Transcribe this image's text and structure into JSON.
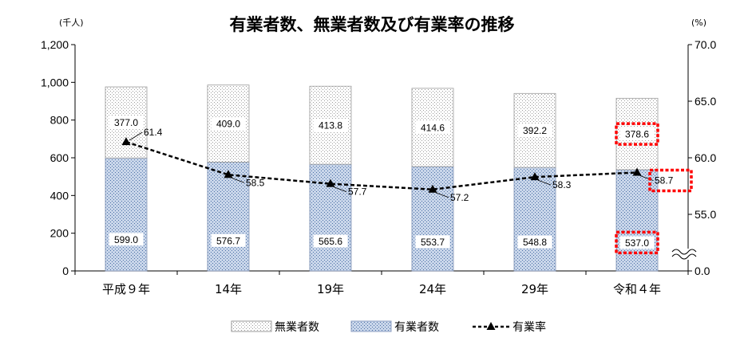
{
  "chart_data": {
    "type": "bar",
    "title": "有業者数、無業者数及び有業率の推移",
    "left_unit": "(千人)",
    "right_unit": "(%)",
    "categories": [
      "平成９年",
      "14年",
      "19年",
      "24年",
      "29年",
      "令和４年"
    ],
    "left_axis": {
      "min": 0,
      "max": 1200,
      "ticks": [
        "0",
        "200",
        "400",
        "600",
        "800",
        "1,000",
        "1,200"
      ]
    },
    "right_axis": {
      "ticks": [
        "0.0",
        "55.0",
        "60.0",
        "65.0",
        "70.0"
      ],
      "range": [
        50,
        70
      ],
      "break": true
    },
    "series": [
      {
        "name": "有業者数",
        "kind": "bar",
        "values": [
          599.0,
          576.7,
          565.6,
          553.7,
          548.8,
          537.0
        ],
        "labels": [
          "599.0",
          "576.7",
          "565.6",
          "553.7",
          "548.8",
          "537.0"
        ]
      },
      {
        "name": "無業者数",
        "kind": "bar-stacked",
        "values": [
          377.0,
          409.0,
          413.8,
          414.6,
          392.2,
          378.6
        ],
        "labels": [
          "377.0",
          "409.0",
          "413.8",
          "414.6",
          "392.2",
          "378.6"
        ]
      },
      {
        "name": "有業率",
        "kind": "line",
        "axis": "right",
        "values": [
          61.4,
          58.5,
          57.7,
          57.2,
          58.3,
          58.7
        ],
        "labels": [
          "61.4",
          "58.5",
          "57.7",
          "57.2",
          "58.3",
          "58.7"
        ]
      }
    ],
    "legend": [
      "無業者数",
      "有業者数",
      "有業率"
    ],
    "legend_position": "bottom",
    "highlighted_labels": [
      "537.0",
      "378.6",
      "58.7"
    ],
    "colors": {
      "employed": "#c9d6ea",
      "employed_dots": "#4a6fa5",
      "nonemployed_dots": "#999999",
      "line": "#000000",
      "highlight": "#ff0000",
      "axis": "#000000"
    }
  }
}
